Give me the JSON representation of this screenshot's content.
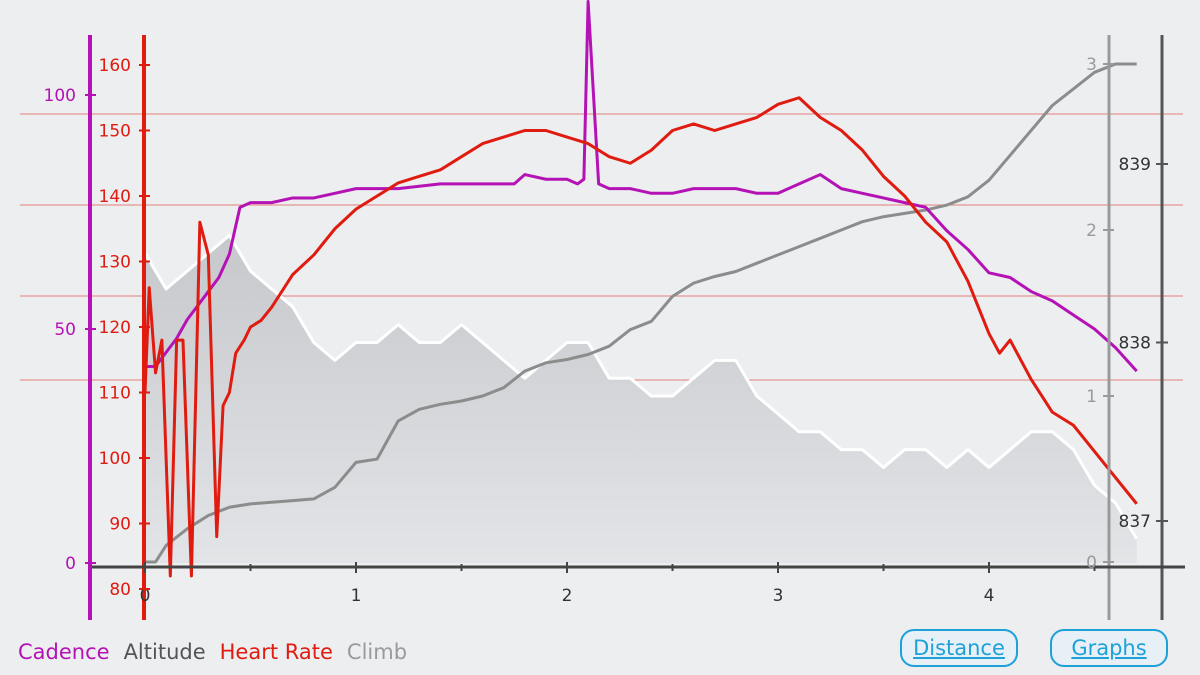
{
  "legend": {
    "cadence": "Cadence",
    "altitude": "Altitude",
    "heart_rate": "Heart Rate",
    "climb": "Climb"
  },
  "buttons": {
    "distance": "Distance",
    "graphs": "Graphs"
  },
  "colors": {
    "cadence": "#b512b5",
    "altitude": "#8c8c8c",
    "heart_rate": "#e01b10",
    "climb": "#c9cbcf",
    "link": "#1ea0d8"
  },
  "chart_data": {
    "type": "line",
    "x_axis": {
      "range": [
        0,
        4.7
      ],
      "ticks": [
        "0",
        "1",
        "2",
        "3",
        "4"
      ]
    },
    "axes": {
      "cadence": {
        "range": [
          0,
          100
        ],
        "ticks": [
          "0",
          "50",
          "100"
        ]
      },
      "heart_rate": {
        "range": [
          80,
          160
        ],
        "ticks": [
          "80",
          "90",
          "100",
          "110",
          "120",
          "130",
          "140",
          "150",
          "160"
        ]
      },
      "climb": {
        "range": [
          0,
          3
        ],
        "ticks": [
          "0",
          "1",
          "2",
          "3"
        ]
      },
      "altitude": {
        "range": [
          836.8,
          839.5
        ],
        "ticks": [
          "837",
          "838",
          "839"
        ]
      }
    },
    "grid": "horizontal",
    "series": [
      {
        "name": "Heart Rate",
        "x": [
          0,
          0.02,
          0.05,
          0.08,
          0.12,
          0.15,
          0.18,
          0.22,
          0.26,
          0.3,
          0.34,
          0.37,
          0.4,
          0.43,
          0.47,
          0.5,
          0.55,
          0.6,
          0.7,
          0.8,
          0.9,
          1.0,
          1.1,
          1.2,
          1.3,
          1.4,
          1.5,
          1.6,
          1.7,
          1.8,
          1.9,
          2.0,
          2.1,
          2.2,
          2.3,
          2.4,
          2.5,
          2.6,
          2.7,
          2.8,
          2.9,
          3.0,
          3.1,
          3.2,
          3.3,
          3.4,
          3.5,
          3.6,
          3.7,
          3.8,
          3.9,
          4.0,
          4.05,
          4.1,
          4.2,
          4.3,
          4.4,
          4.45,
          4.5,
          4.55,
          4.6,
          4.65,
          4.7
        ],
        "values": [
          110,
          126,
          113,
          118,
          82,
          118,
          118,
          82,
          136,
          131,
          88,
          108,
          110,
          116,
          118,
          120,
          121,
          123,
          128,
          131,
          135,
          138,
          140,
          142,
          143,
          144,
          146,
          148,
          149,
          150,
          150,
          149,
          148,
          146,
          145,
          147,
          150,
          151,
          150,
          151,
          152,
          154,
          155,
          152,
          150,
          147,
          143,
          140,
          136,
          133,
          127,
          119,
          116,
          118,
          112,
          107,
          105,
          103,
          101,
          99,
          97,
          95,
          93
        ]
      },
      {
        "name": "Cadence",
        "x": [
          0,
          0.05,
          0.1,
          0.15,
          0.2,
          0.25,
          0.3,
          0.35,
          0.4,
          0.45,
          0.5,
          0.6,
          0.7,
          0.8,
          0.9,
          1.0,
          1.2,
          1.4,
          1.5,
          1.6,
          1.7,
          1.75,
          1.8,
          1.9,
          2.0,
          2.05,
          2.08,
          2.1,
          2.15,
          2.2,
          2.3,
          2.4,
          2.5,
          2.6,
          2.7,
          2.8,
          2.9,
          3.0,
          3.1,
          3.2,
          3.3,
          3.4,
          3.5,
          3.6,
          3.7,
          3.8,
          3.9,
          4.0,
          4.1,
          4.2,
          4.3,
          4.4,
          4.5,
          4.6,
          4.7
        ],
        "values": [
          42,
          42,
          45,
          48,
          52,
          55,
          58,
          61,
          66,
          76,
          77,
          77,
          78,
          78,
          79,
          80,
          80,
          81,
          81,
          81,
          81,
          81,
          83,
          82,
          82,
          81,
          82,
          120,
          81,
          80,
          80,
          79,
          79,
          80,
          80,
          80,
          79,
          79,
          81,
          83,
          80,
          79,
          78,
          77,
          76,
          71,
          67,
          62,
          61,
          58,
          56,
          53,
          50,
          46,
          41
        ]
      },
      {
        "name": "Climb",
        "x": [
          0,
          0.05,
          0.1,
          0.2,
          0.3,
          0.4,
          0.5,
          0.6,
          0.7,
          0.8,
          0.9,
          1.0,
          1.1,
          1.2,
          1.3,
          1.4,
          1.5,
          1.6,
          1.7,
          1.8,
          1.9,
          2.0,
          2.1,
          2.2,
          2.3,
          2.4,
          2.5,
          2.6,
          2.7,
          2.8,
          2.9,
          3.0,
          3.1,
          3.2,
          3.3,
          3.4,
          3.5,
          3.6,
          3.7,
          3.8,
          3.9,
          4.0,
          4.1,
          4.2,
          4.3,
          4.4,
          4.5,
          4.6,
          4.7
        ],
        "values": [
          0,
          0,
          0.1,
          0.2,
          0.28,
          0.33,
          0.35,
          0.36,
          0.37,
          0.38,
          0.45,
          0.6,
          0.62,
          0.85,
          0.92,
          0.95,
          0.97,
          1.0,
          1.05,
          1.15,
          1.2,
          1.22,
          1.25,
          1.3,
          1.4,
          1.45,
          1.6,
          1.68,
          1.72,
          1.75,
          1.8,
          1.85,
          1.9,
          1.95,
          2.0,
          2.05,
          2.08,
          2.1,
          2.12,
          2.15,
          2.2,
          2.3,
          2.45,
          2.6,
          2.75,
          2.85,
          2.95,
          3.0,
          3.0
        ]
      },
      {
        "name": "Altitude",
        "x": [
          0,
          0.1,
          0.2,
          0.3,
          0.4,
          0.5,
          0.6,
          0.7,
          0.8,
          0.9,
          1.0,
          1.1,
          1.2,
          1.3,
          1.4,
          1.5,
          1.6,
          1.7,
          1.8,
          1.9,
          2.0,
          2.1,
          2.2,
          2.3,
          2.4,
          2.5,
          2.6,
          2.7,
          2.8,
          2.9,
          3.0,
          3.1,
          3.2,
          3.3,
          3.4,
          3.5,
          3.6,
          3.7,
          3.8,
          3.9,
          4.0,
          4.1,
          4.2,
          4.3,
          4.4,
          4.5,
          4.6,
          4.7
        ],
        "values": [
          838.5,
          838.3,
          838.4,
          838.5,
          838.6,
          838.4,
          838.3,
          838.2,
          838.0,
          837.9,
          838.0,
          838.0,
          838.1,
          838.0,
          838.0,
          838.1,
          838.0,
          837.9,
          837.8,
          837.9,
          838.0,
          838.0,
          837.8,
          837.8,
          837.7,
          837.7,
          837.8,
          837.9,
          837.9,
          837.7,
          837.6,
          837.5,
          837.5,
          837.4,
          837.4,
          837.3,
          837.4,
          837.4,
          837.3,
          837.4,
          837.3,
          837.4,
          837.5,
          837.5,
          837.4,
          837.2,
          837.1,
          836.9
        ]
      }
    ]
  }
}
